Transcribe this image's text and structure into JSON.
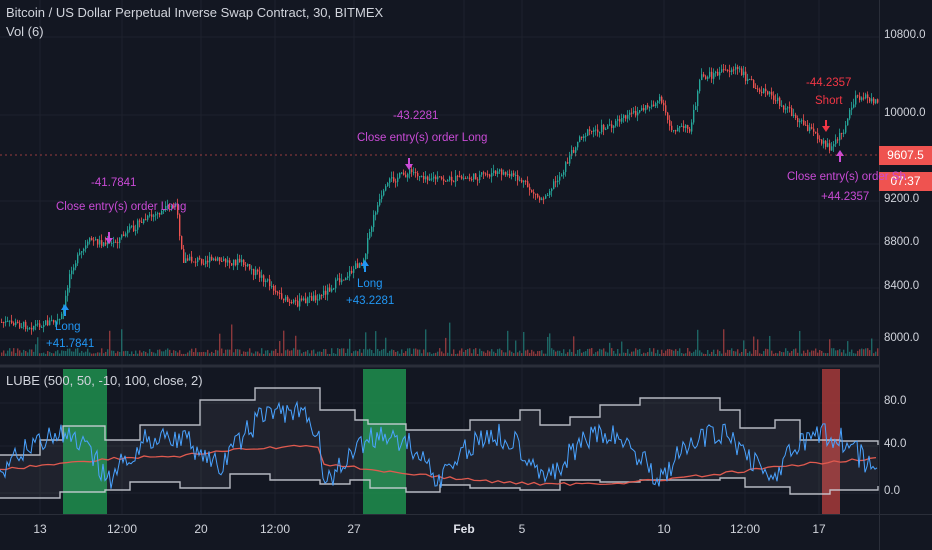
{
  "header": {
    "title": "Bitcoin / US Dollar Perpetual Inverse Swap Contract, 30, BITMEX",
    "volume_indicator": "Vol (6)"
  },
  "indicator": {
    "label": "LUBE (500, 50, -10, 100, close, 2)"
  },
  "price_axis": {
    "labels": [
      "10800.0",
      "10000.0",
      "9200.0",
      "8800.0",
      "8400.0",
      "8000.0"
    ],
    "current_price": "9607.5",
    "countdown": "07:37"
  },
  "indicator_axis": {
    "labels": [
      "80.0",
      "40.0",
      "0.0"
    ]
  },
  "time_axis": {
    "labels": [
      "13",
      "12:00",
      "20",
      "12:00",
      "27",
      "Feb",
      "5",
      "10",
      "12:00",
      "17"
    ]
  },
  "trades": {
    "long1": {
      "label": "Long",
      "value": "+41.7841"
    },
    "close1": {
      "value": "-41.7841",
      "label": "Close entry(s) order Long"
    },
    "long2": {
      "label": "Long",
      "value": "+43.2281"
    },
    "close2": {
      "value": "-43.2281",
      "label": "Close entry(s) order Long"
    },
    "short1": {
      "value": "-44.2357",
      "label": "Short"
    },
    "close3": {
      "label": "Close entry(s) order Sh",
      "value": "+44.2357"
    }
  },
  "colors": {
    "background": "#131722",
    "up": "#26a69a",
    "down": "#ef5350",
    "long_zone": "#1e8f4e",
    "short_zone": "#a63a3a",
    "lube_line": "#4aa3ff",
    "mid_line": "#e05a4f",
    "band": "#d1d4dc",
    "annot_pink": "#c94bd6",
    "annot_blue": "#2196f3"
  }
}
